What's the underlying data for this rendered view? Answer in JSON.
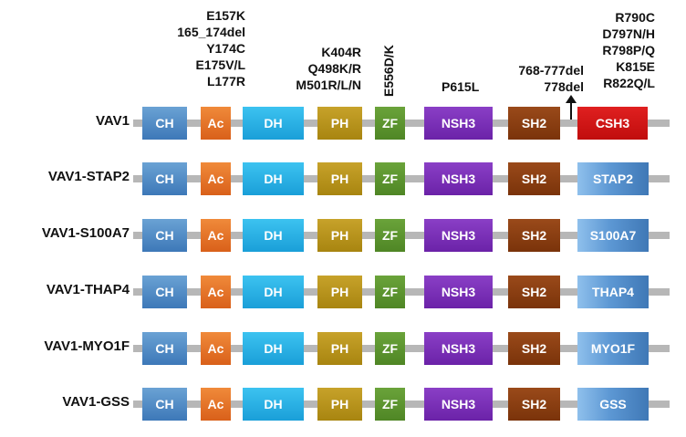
{
  "annotations": {
    "group1": [
      "E157K",
      "165_174del",
      "Y174C",
      "E175V/L",
      "L177R"
    ],
    "group2": [
      "K404R",
      "Q498K/R",
      "M501R/L/N"
    ],
    "group3": "E556D/K",
    "group4": "P615L",
    "group5": [
      "768-777del",
      "778del"
    ],
    "group6": [
      "R790C",
      "D797N/H",
      "R798P/Q",
      "K815E",
      "R822Q/L"
    ]
  },
  "domains": {
    "ch": "CH",
    "ac": "Ac",
    "dh": "DH",
    "ph": "PH",
    "zf": "ZF",
    "nsh3": "NSH3",
    "sh2": "SH2",
    "csh3": "CSH3"
  },
  "rows": [
    {
      "label": "VAV1",
      "terminal": "CSH3"
    },
    {
      "label": "VAV1-STAP2",
      "terminal": "STAP2"
    },
    {
      "label": "VAV1-S100A7",
      "terminal": "S100A7"
    },
    {
      "label": "VAV1-THAP4",
      "terminal": "THAP4"
    },
    {
      "label": "VAV1-MYO1F",
      "terminal": "MYO1F"
    },
    {
      "label": "VAV1-GSS",
      "terminal": "GSS"
    }
  ],
  "colors": {
    "ch": "#4f8bc6",
    "ac": "#e8762a",
    "dh": "#29b2e6",
    "ph": "#b8931c",
    "zf": "#5d952e",
    "nsh3": "#7a30b8",
    "sh2": "#8a3e12",
    "csh3": "#d41515",
    "fusion": "#5d98d4",
    "backbone": "#b7b7b7"
  }
}
